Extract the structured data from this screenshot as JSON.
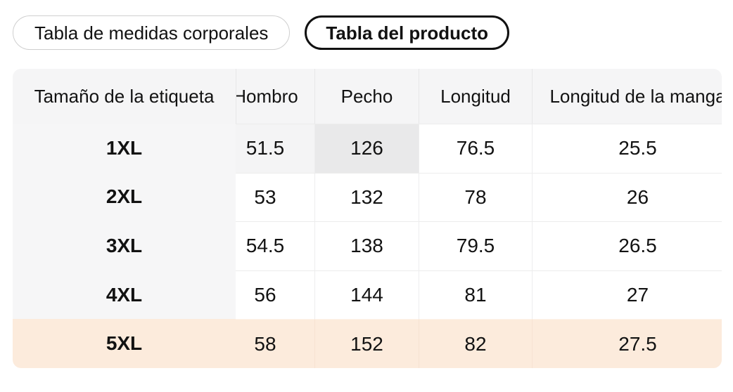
{
  "tabs": {
    "items": [
      {
        "label": "Tabla de medidas corporales",
        "selected": false
      },
      {
        "label": "Tabla del producto",
        "selected": true
      }
    ]
  },
  "size_table": {
    "columns": [
      "Tamaño de la etiqueta",
      "Hombro",
      "Pecho",
      "Longitud",
      "Longitud de la manga"
    ],
    "rows": [
      {
        "size": "1XL",
        "values": [
          "51.5",
          "126",
          "76.5",
          "25.5"
        ]
      },
      {
        "size": "2XL",
        "values": [
          "53",
          "132",
          "78",
          "26"
        ]
      },
      {
        "size": "3XL",
        "values": [
          "54.5",
          "138",
          "79.5",
          "26.5"
        ]
      },
      {
        "size": "4XL",
        "values": [
          "56",
          "144",
          "81",
          "27"
        ]
      },
      {
        "size": "5XL",
        "values": [
          "58",
          "152",
          "82",
          "27.5"
        ]
      }
    ],
    "highlighted_row": "5XL",
    "highlighted_cell": {
      "row": "1XL",
      "column": "Pecho",
      "value": "126"
    }
  },
  "colors": {
    "accent_row_bg": "#fcebdc",
    "header_bg": "#f5f5f6",
    "first_column_bg": "#f6f6f7",
    "highlight_cell_bg": "#e9e9ea",
    "soft_highlight_cell_bg": "#f4f4f5",
    "selected_tab_border": "#111111",
    "unselected_tab_border": "#cfcfcf"
  }
}
